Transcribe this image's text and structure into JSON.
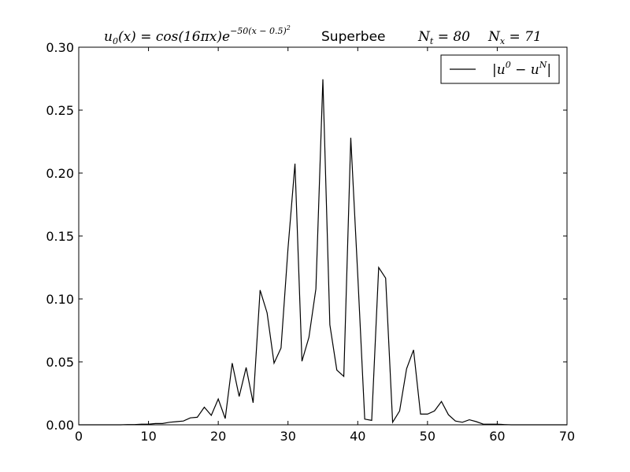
{
  "chart_data": {
    "type": "line",
    "title": {
      "formula_base": "u",
      "formula_sub": "0",
      "formula_mid": "(x) = cos(16πx)e",
      "formula_exp": "−50(x − 0.5)",
      "formula_exp_sup": "2",
      "scheme": "Superbee",
      "nt_label": "N",
      "nt_sub": "t",
      "nt_value": " = 80",
      "nx_label": "N",
      "nx_sub": "x",
      "nx_value": " = 71"
    },
    "xlabel": "",
    "ylabel": "",
    "xlim": [
      0,
      70
    ],
    "ylim": [
      0,
      0.3
    ],
    "xticks": [
      "0",
      "10",
      "20",
      "30",
      "40",
      "50",
      "60",
      "70"
    ],
    "yticks": [
      "0.00",
      "0.05",
      "0.10",
      "0.15",
      "0.20",
      "0.25",
      "0.30"
    ],
    "grid": false,
    "legend_position": "top-right",
    "series": [
      {
        "name": "|u⁰ − uᴺ|",
        "name_parts": {
          "open": "|u",
          "sup0": "0",
          "minus": " − u",
          "supN": "N",
          "close": "|"
        },
        "color": "#000000",
        "x": [
          0,
          1,
          2,
          3,
          4,
          5,
          6,
          7,
          8,
          9,
          10,
          11,
          12,
          13,
          14,
          15,
          16,
          17,
          18,
          19,
          20,
          21,
          22,
          23,
          24,
          25,
          26,
          27,
          28,
          29,
          30,
          31,
          32,
          33,
          34,
          35,
          36,
          37,
          38,
          39,
          40,
          41,
          42,
          43,
          44,
          45,
          46,
          47,
          48,
          49,
          50,
          51,
          52,
          53,
          54,
          55,
          56,
          57,
          58,
          59,
          60,
          61,
          62,
          63,
          64,
          65,
          66,
          67,
          68,
          69,
          70
        ],
        "y": [
          0,
          0,
          0,
          0,
          0,
          0,
          0,
          0.0002,
          0.0002,
          0.0005,
          0.0005,
          0.001,
          0.001,
          0.002,
          0.0025,
          0.003,
          0.0055,
          0.006,
          0.014,
          0.0075,
          0.0205,
          0.005,
          0.049,
          0.0225,
          0.0455,
          0.0175,
          0.107,
          0.089,
          0.049,
          0.061,
          0.14,
          0.2075,
          0.0505,
          0.0695,
          0.108,
          0.2745,
          0.0795,
          0.0435,
          0.0385,
          0.228,
          0.119,
          0.0045,
          0.0035,
          0.125,
          0.1165,
          0.002,
          0.011,
          0.0445,
          0.0595,
          0.0085,
          0.0085,
          0.011,
          0.0185,
          0.008,
          0.003,
          0.002,
          0.004,
          0.0025,
          0.0005,
          0.0005,
          0.0005,
          0.0002,
          0,
          0,
          0,
          0,
          0,
          0,
          0,
          0,
          0
        ]
      }
    ]
  }
}
